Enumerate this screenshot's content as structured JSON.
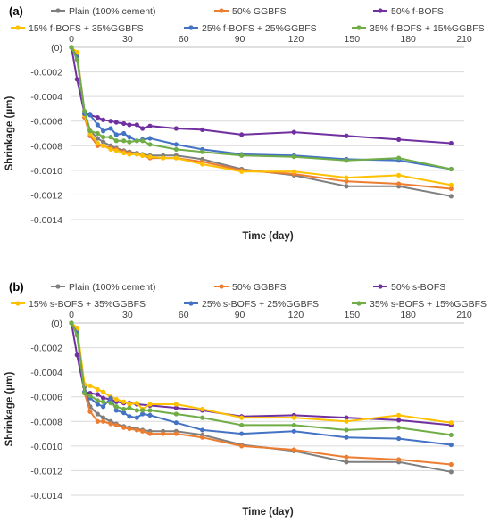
{
  "chart_data": [
    {
      "type": "line",
      "panel_label": "(a)",
      "xlabel": "Time (day)",
      "ylabel": "Shrinkage (μm)",
      "xlim": [
        0,
        210
      ],
      "ylim": [
        -0.0014,
        0
      ],
      "xticks": [
        "0",
        "30",
        "60",
        "90",
        "120",
        "150",
        "180",
        "210"
      ],
      "yticks": [
        "(0)",
        "-0.0002",
        "-0.0004",
        "-0.0006",
        "-0.0008",
        "-0.0010",
        "-0.0012",
        "-0.0014"
      ],
      "grid": "horizontal",
      "legend_position": "top",
      "series": [
        {
          "name": "Plain (100% cement)",
          "color": "#7f7f7f",
          "points": [
            [
              0,
              0
            ],
            [
              3,
              -5e-05
            ],
            [
              7,
              -0.00052
            ],
            [
              10,
              -0.00068
            ],
            [
              14,
              -0.00074
            ],
            [
              17,
              -0.00077
            ],
            [
              21,
              -0.0008
            ],
            [
              24,
              -0.00082
            ],
            [
              28,
              -0.00084
            ],
            [
              31,
              -0.00085
            ],
            [
              35,
              -0.00086
            ],
            [
              38,
              -0.00087
            ],
            [
              42,
              -0.00088
            ],
            [
              49,
              -0.00088
            ],
            [
              56,
              -0.00088
            ],
            [
              70,
              -0.00091
            ],
            [
              91,
              -0.00099
            ],
            [
              119,
              -0.00104
            ],
            [
              147,
              -0.00113
            ],
            [
              175,
              -0.00113
            ],
            [
              203,
              -0.00121
            ]
          ]
        },
        {
          "name": "50% GGBFS",
          "color": "#ed7d31",
          "points": [
            [
              0,
              0
            ],
            [
              3,
              -6e-05
            ],
            [
              7,
              -0.00057
            ],
            [
              10,
              -0.00072
            ],
            [
              14,
              -0.0008
            ],
            [
              17,
              -0.0008
            ],
            [
              21,
              -0.00082
            ],
            [
              24,
              -0.00083
            ],
            [
              28,
              -0.00085
            ],
            [
              31,
              -0.00086
            ],
            [
              35,
              -0.00087
            ],
            [
              38,
              -0.00088
            ],
            [
              42,
              -0.0009
            ],
            [
              49,
              -0.0009
            ],
            [
              56,
              -0.0009
            ],
            [
              70,
              -0.00093
            ],
            [
              91,
              -0.001
            ],
            [
              119,
              -0.00103
            ],
            [
              147,
              -0.00109
            ],
            [
              175,
              -0.00111
            ],
            [
              203,
              -0.00115
            ]
          ]
        },
        {
          "name": "50% f-BOFS",
          "color": "#7030a0",
          "points": [
            [
              0,
              0
            ],
            [
              3,
              -0.00026
            ],
            [
              7,
              -0.00054
            ],
            [
              10,
              -0.00055
            ],
            [
              14,
              -0.00057
            ],
            [
              17,
              -0.00059
            ],
            [
              21,
              -0.0006
            ],
            [
              24,
              -0.00061
            ],
            [
              28,
              -0.00062
            ],
            [
              31,
              -0.00063
            ],
            [
              35,
              -0.00063
            ],
            [
              38,
              -0.00066
            ],
            [
              42,
              -0.00064
            ],
            [
              56,
              -0.00066
            ],
            [
              70,
              -0.00067
            ],
            [
              91,
              -0.00071
            ],
            [
              119,
              -0.00069
            ],
            [
              147,
              -0.00072
            ],
            [
              175,
              -0.00075
            ],
            [
              203,
              -0.00078
            ]
          ]
        },
        {
          "name": "15% f-BOFS + 35%GGBFS",
          "color": "#ffc000",
          "points": [
            [
              0,
              0
            ],
            [
              3,
              -4e-05
            ],
            [
              7,
              -0.00055
            ],
            [
              10,
              -0.0007
            ],
            [
              14,
              -0.00078
            ],
            [
              17,
              -0.0008
            ],
            [
              21,
              -0.00083
            ],
            [
              24,
              -0.00084
            ],
            [
              28,
              -0.00086
            ],
            [
              31,
              -0.00087
            ],
            [
              35,
              -0.00087
            ],
            [
              38,
              -0.00088
            ],
            [
              42,
              -0.00089
            ],
            [
              49,
              -0.0009
            ],
            [
              56,
              -0.0009
            ],
            [
              70,
              -0.00095
            ],
            [
              91,
              -0.00101
            ],
            [
              119,
              -0.00101
            ],
            [
              147,
              -0.00106
            ],
            [
              175,
              -0.00104
            ],
            [
              203,
              -0.00112
            ]
          ]
        },
        {
          "name": "25% f-BOFS + 25%GGBFS",
          "color": "#4472c4",
          "points": [
            [
              0,
              0
            ],
            [
              3,
              -8e-05
            ],
            [
              7,
              -0.00054
            ],
            [
              10,
              -0.00055
            ],
            [
              14,
              -0.00063
            ],
            [
              17,
              -0.00068
            ],
            [
              21,
              -0.00066
            ],
            [
              24,
              -0.00071
            ],
            [
              28,
              -0.0007
            ],
            [
              31,
              -0.00073
            ],
            [
              35,
              -0.00076
            ],
            [
              38,
              -0.00075
            ],
            [
              42,
              -0.00074
            ],
            [
              56,
              -0.00079
            ],
            [
              70,
              -0.00083
            ],
            [
              91,
              -0.00087
            ],
            [
              119,
              -0.00088
            ],
            [
              147,
              -0.00091
            ],
            [
              175,
              -0.00092
            ],
            [
              203,
              -0.00099
            ]
          ]
        },
        {
          "name": "35% f-BOFS + 15%GGBFS",
          "color": "#70ad47",
          "points": [
            [
              0,
              0
            ],
            [
              3,
              -0.0001
            ],
            [
              7,
              -0.00052
            ],
            [
              10,
              -0.00068
            ],
            [
              14,
              -0.0007
            ],
            [
              17,
              -0.00073
            ],
            [
              21,
              -0.00073
            ],
            [
              24,
              -0.00076
            ],
            [
              28,
              -0.00076
            ],
            [
              31,
              -0.00077
            ],
            [
              35,
              -0.00076
            ],
            [
              38,
              -0.00076
            ],
            [
              42,
              -0.00079
            ],
            [
              56,
              -0.00083
            ],
            [
              70,
              -0.00085
            ],
            [
              91,
              -0.00088
            ],
            [
              119,
              -0.00089
            ],
            [
              147,
              -0.00092
            ],
            [
              175,
              -0.0009
            ],
            [
              203,
              -0.00099
            ]
          ]
        }
      ]
    },
    {
      "type": "line",
      "panel_label": "(b)",
      "xlabel": "Time (day)",
      "ylabel": "Shrinkage (μm)",
      "xlim": [
        0,
        210
      ],
      "ylim": [
        -0.0014,
        0
      ],
      "xticks": [
        "0",
        "30",
        "60",
        "90",
        "120",
        "150",
        "180",
        "210"
      ],
      "yticks": [
        "(0)",
        "-0.0002",
        "-0.0004",
        "-0.0006",
        "-0.0008",
        "-0.0010",
        "-0.0012",
        "-0.0014"
      ],
      "grid": "horizontal",
      "legend_position": "top",
      "series": [
        {
          "name": "Plain (100% cement)",
          "color": "#7f7f7f",
          "points": [
            [
              0,
              0
            ],
            [
              3,
              -5e-05
            ],
            [
              7,
              -0.00052
            ],
            [
              10,
              -0.00068
            ],
            [
              14,
              -0.00074
            ],
            [
              17,
              -0.00077
            ],
            [
              21,
              -0.0008
            ],
            [
              24,
              -0.00082
            ],
            [
              28,
              -0.00084
            ],
            [
              31,
              -0.00085
            ],
            [
              35,
              -0.00086
            ],
            [
              38,
              -0.00087
            ],
            [
              42,
              -0.00088
            ],
            [
              49,
              -0.00088
            ],
            [
              56,
              -0.00088
            ],
            [
              70,
              -0.00091
            ],
            [
              91,
              -0.00099
            ],
            [
              119,
              -0.00104
            ],
            [
              147,
              -0.00113
            ],
            [
              175,
              -0.00113
            ],
            [
              203,
              -0.00121
            ]
          ]
        },
        {
          "name": "50% GGBFS",
          "color": "#ed7d31",
          "points": [
            [
              0,
              0
            ],
            [
              3,
              -6e-05
            ],
            [
              7,
              -0.00057
            ],
            [
              10,
              -0.00072
            ],
            [
              14,
              -0.0008
            ],
            [
              17,
              -0.0008
            ],
            [
              21,
              -0.00082
            ],
            [
              24,
              -0.00083
            ],
            [
              28,
              -0.00085
            ],
            [
              31,
              -0.00086
            ],
            [
              35,
              -0.00087
            ],
            [
              38,
              -0.00088
            ],
            [
              42,
              -0.0009
            ],
            [
              49,
              -0.0009
            ],
            [
              56,
              -0.0009
            ],
            [
              70,
              -0.00093
            ],
            [
              91,
              -0.001
            ],
            [
              119,
              -0.00103
            ],
            [
              147,
              -0.00109
            ],
            [
              175,
              -0.00111
            ],
            [
              203,
              -0.00115
            ]
          ]
        },
        {
          "name": "50% s-BOFS",
          "color": "#7030a0",
          "points": [
            [
              0,
              0
            ],
            [
              3,
              -0.00026
            ],
            [
              7,
              -0.00056
            ],
            [
              10,
              -0.00057
            ],
            [
              14,
              -0.00058
            ],
            [
              17,
              -0.00061
            ],
            [
              21,
              -0.00062
            ],
            [
              24,
              -0.00064
            ],
            [
              28,
              -0.00065
            ],
            [
              31,
              -0.00065
            ],
            [
              35,
              -0.00066
            ],
            [
              42,
              -0.00067
            ],
            [
              56,
              -0.00069
            ],
            [
              70,
              -0.00071
            ],
            [
              91,
              -0.00076
            ],
            [
              119,
              -0.00075
            ],
            [
              147,
              -0.00077
            ],
            [
              175,
              -0.00079
            ],
            [
              203,
              -0.00083
            ]
          ]
        },
        {
          "name": "15% s-BOFS + 35%GGBFS",
          "color": "#ffc000",
          "points": [
            [
              0,
              0
            ],
            [
              3,
              -4e-05
            ],
            [
              7,
              -0.0005
            ],
            [
              10,
              -0.00051
            ],
            [
              14,
              -0.00054
            ],
            [
              17,
              -0.00056
            ],
            [
              21,
              -0.0006
            ],
            [
              24,
              -0.00062
            ],
            [
              28,
              -0.00064
            ],
            [
              31,
              -0.00066
            ],
            [
              35,
              -0.00065
            ],
            [
              38,
              -0.0007
            ],
            [
              42,
              -0.00066
            ],
            [
              56,
              -0.00066
            ],
            [
              70,
              -0.0007
            ],
            [
              91,
              -0.00077
            ],
            [
              119,
              -0.00077
            ],
            [
              147,
              -0.0008
            ],
            [
              175,
              -0.00075
            ],
            [
              203,
              -0.00081
            ]
          ]
        },
        {
          "name": "25% s-BOFS + 25%GGBFS",
          "color": "#4472c4",
          "points": [
            [
              0,
              0
            ],
            [
              3,
              -8e-05
            ],
            [
              7,
              -0.00056
            ],
            [
              10,
              -0.00061
            ],
            [
              14,
              -0.00066
            ],
            [
              17,
              -0.00068
            ],
            [
              21,
              -0.00061
            ],
            [
              24,
              -0.00071
            ],
            [
              28,
              -0.00073
            ],
            [
              31,
              -0.00076
            ],
            [
              35,
              -0.00077
            ],
            [
              38,
              -0.00074
            ],
            [
              42,
              -0.00075
            ],
            [
              56,
              -0.00081
            ],
            [
              70,
              -0.00087
            ],
            [
              91,
              -0.0009
            ],
            [
              119,
              -0.00088
            ],
            [
              147,
              -0.00093
            ],
            [
              175,
              -0.00094
            ],
            [
              203,
              -0.00099
            ]
          ]
        },
        {
          "name": "35% s-BOFS + 15%GGBFS",
          "color": "#70ad47",
          "points": [
            [
              0,
              0
            ],
            [
              3,
              -0.0001
            ],
            [
              7,
              -0.00057
            ],
            [
              10,
              -0.00059
            ],
            [
              14,
              -0.00063
            ],
            [
              17,
              -0.00064
            ],
            [
              21,
              -0.00065
            ],
            [
              24,
              -0.00068
            ],
            [
              28,
              -0.0007
            ],
            [
              31,
              -0.00069
            ],
            [
              35,
              -0.00071
            ],
            [
              38,
              -0.00071
            ],
            [
              42,
              -0.00071
            ],
            [
              56,
              -0.00074
            ],
            [
              70,
              -0.00077
            ],
            [
              91,
              -0.00083
            ],
            [
              119,
              -0.00083
            ],
            [
              147,
              -0.00087
            ],
            [
              175,
              -0.00085
            ],
            [
              203,
              -0.00091
            ]
          ]
        }
      ]
    }
  ]
}
